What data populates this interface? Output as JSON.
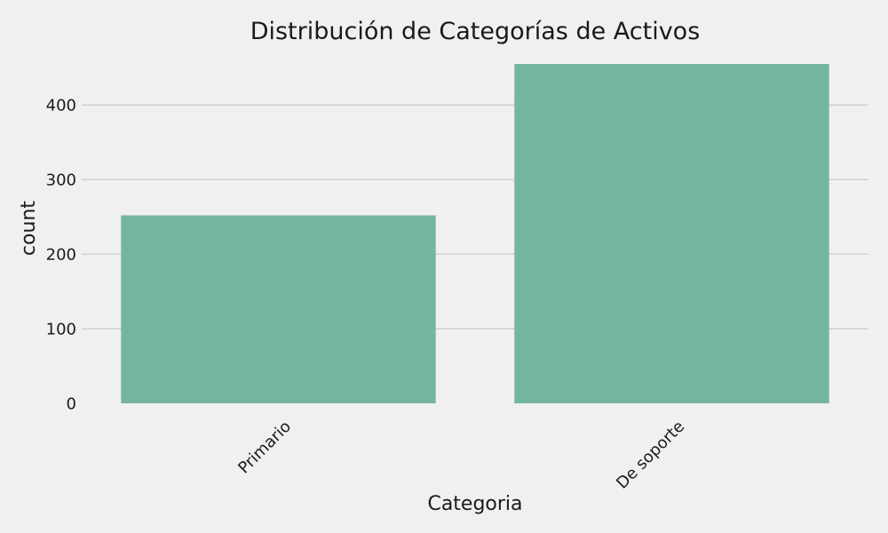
{
  "chart_data": {
    "type": "bar",
    "title": "Distribución de Categorías de Activos",
    "xlabel": "Categoria",
    "ylabel": "count",
    "categories": [
      "Primario",
      "De soporte"
    ],
    "values": [
      252,
      455
    ],
    "ylim": [
      0,
      455
    ],
    "yticks": [
      0,
      100,
      200,
      300,
      400
    ],
    "grid": true,
    "bar_color": "#74b5a1",
    "background_color": "#f0f0f0",
    "grid_color": "#cbcbcb",
    "x_tick_rotation_deg": 45
  }
}
